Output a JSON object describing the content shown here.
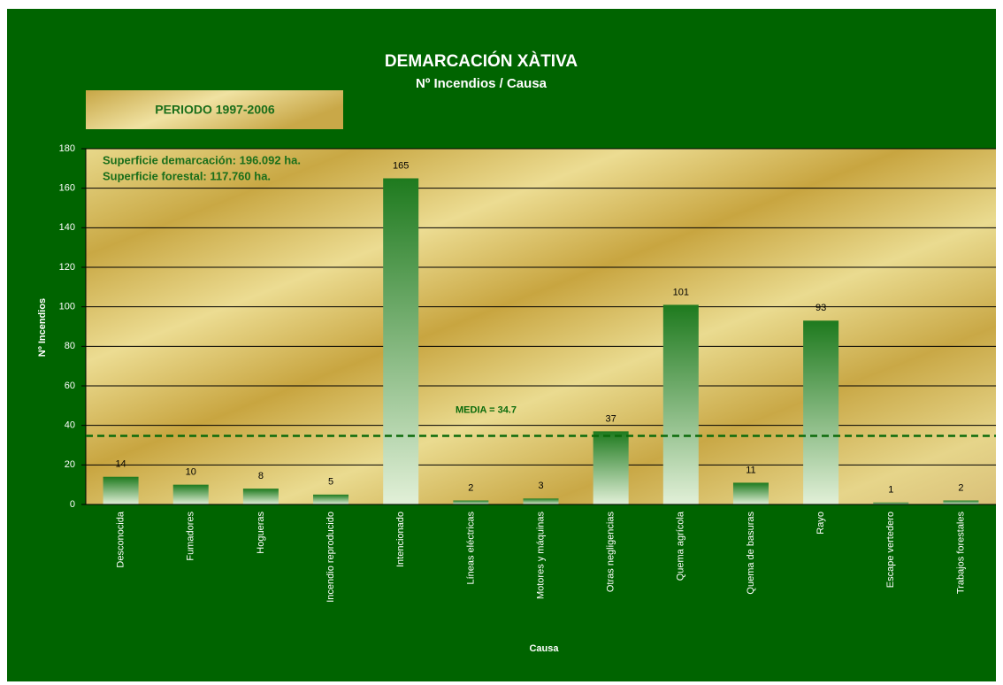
{
  "chart_data": {
    "type": "bar",
    "title": "DEMARCACIÓN XÀTIVA",
    "subtitle": "Nº Incendios / Causa",
    "period": "PERIODO 1997-2006",
    "annotations": [
      "Superficie demarcación:  196.092 ha.",
      "Superficie forestal:  117.760 ha."
    ],
    "xlabel": "Causa",
    "ylabel": "Nº Incendios",
    "categories": [
      "Desconocida",
      "Fumadores",
      "Hogueras",
      "Incendio reproducido",
      "Intencionado",
      "Líneas eléctricas",
      "Motores y máquinas",
      "Otras negligencias",
      "Quema agrícola",
      "Quema de basuras",
      "Rayo",
      "Escape vertedero",
      "Trabajos forestales"
    ],
    "values": [
      14,
      10,
      8,
      5,
      165,
      2,
      3,
      37,
      101,
      11,
      93,
      1,
      2
    ],
    "color": "#1e7a1e",
    "mean": 34.7,
    "mean_label": "MEDIA = 34.7",
    "ylim": [
      0,
      180
    ],
    "yticks": [
      0,
      20,
      40,
      60,
      80,
      100,
      120,
      140,
      160,
      180
    ],
    "grid": true
  }
}
